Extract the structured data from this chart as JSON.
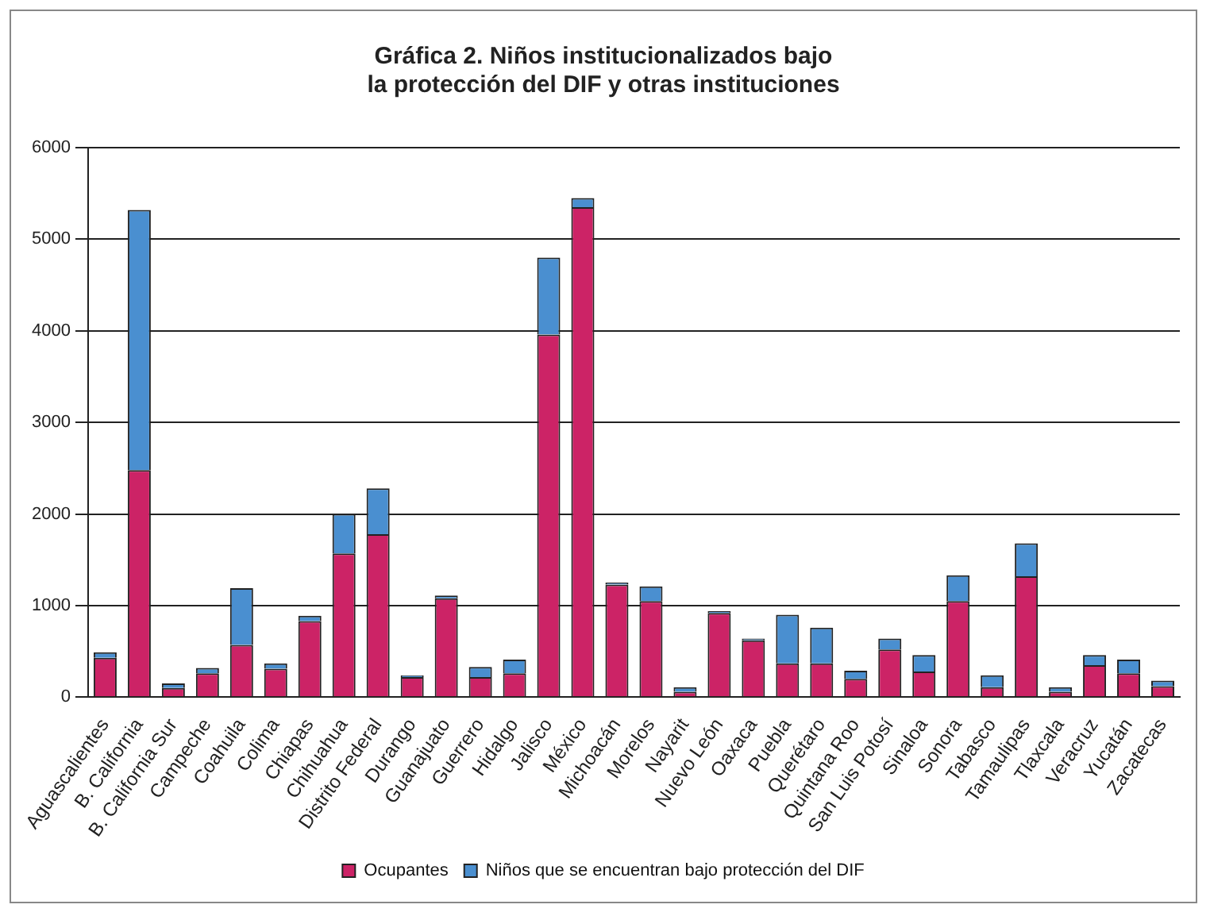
{
  "chart_data": {
    "type": "bar",
    "title": "Gráfica 2. Niños institucionalizados bajo\nla protección del DIF y otras instituciones",
    "categories": [
      "Aguascalientes",
      "B. California",
      "B. California Sur",
      "Campeche",
      "Coahuila",
      "Colima",
      "Chiapas",
      "Chihuahua",
      "Distrito Federal",
      "Durango",
      "Guanajuato",
      "Guerrero",
      "Hidalgo",
      "Jalisco",
      "México",
      "Michoacán",
      "Morelos",
      "Nayarit",
      "Nuevo León",
      "Oaxaca",
      "Puebla",
      "Querétaro",
      "Quintana Roo",
      "San Luis Potosí",
      "Sinaloa",
      "Sonora",
      "Tabasco",
      "Tamaulipas",
      "Tlaxcala",
      "Veracruz",
      "Yucatán",
      "Zacatecas"
    ],
    "series": [
      {
        "name": "Ocupantes",
        "color": "#cc2366",
        "values": [
          430,
          2480,
          100,
          260,
          570,
          310,
          830,
          1570,
          1780,
          220,
          1080,
          220,
          260,
          3960,
          5350,
          1230,
          1050,
          60,
          920,
          620,
          370,
          370,
          200,
          520,
          280,
          1050,
          110,
          1320,
          60,
          350,
          260,
          120
        ]
      },
      {
        "name": "Niños que se encuentran bajo protección del DIF",
        "color": "#4a8fd0",
        "values": [
          60,
          2840,
          50,
          60,
          620,
          60,
          60,
          430,
          500,
          20,
          30,
          110,
          150,
          840,
          100,
          20,
          160,
          50,
          20,
          20,
          530,
          390,
          90,
          120,
          180,
          280,
          130,
          360,
          50,
          110,
          150,
          60
        ]
      }
    ],
    "stacked": true,
    "ylim": [
      0,
      6000
    ],
    "yticks": [
      0,
      1000,
      2000,
      3000,
      4000,
      5000,
      6000
    ],
    "grid": "y",
    "legend": "bottom"
  }
}
